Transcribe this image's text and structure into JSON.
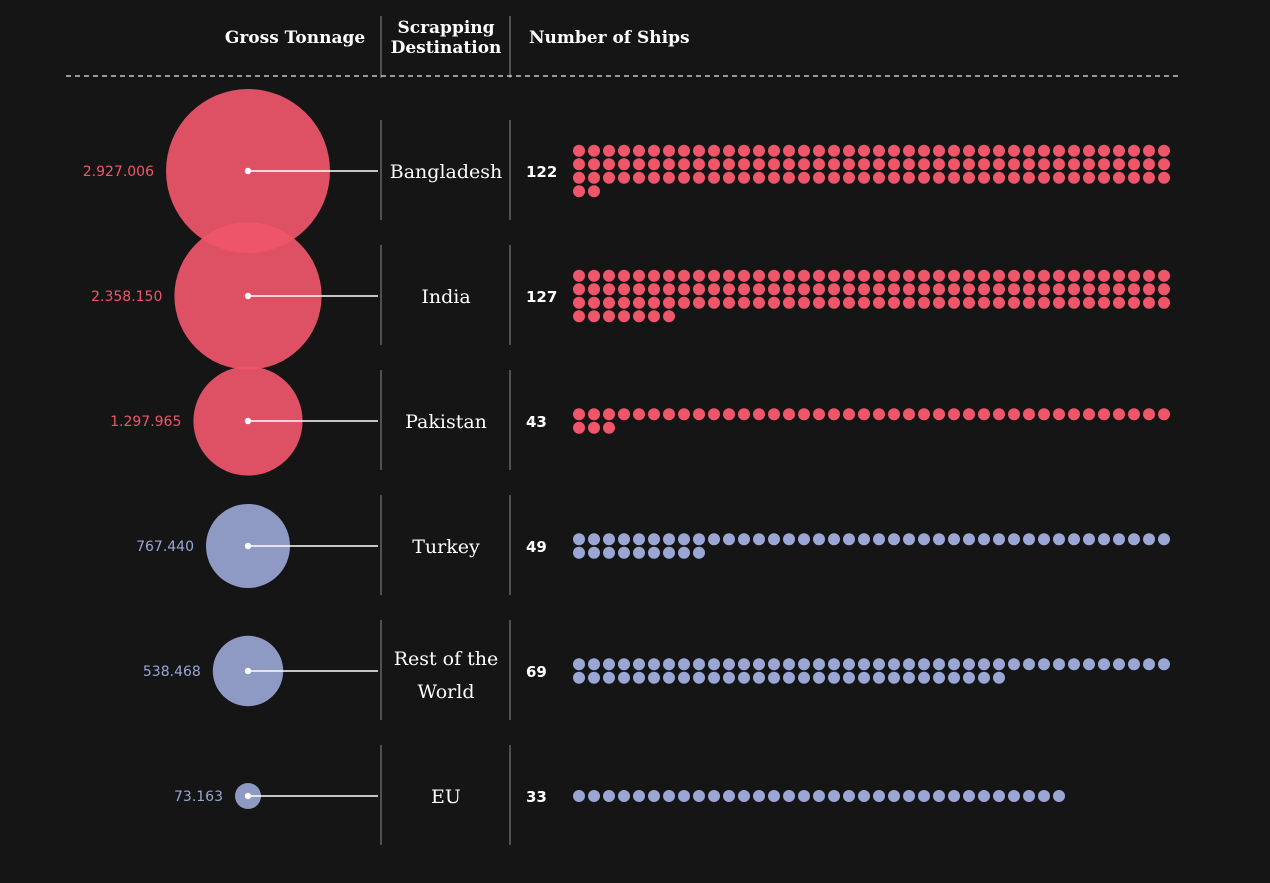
{
  "colors": {
    "background": "#151516",
    "top3": "#f0566a",
    "others": "#9aa6d4",
    "line": "#ffffff",
    "divider": "#8a8a8a"
  },
  "chart_data": {
    "type": "bubble-and-dot-matrix",
    "headers": {
      "gross_tonnage": "Gross Tonnage",
      "destination_line1": "Scrapping",
      "destination_line2": "Destination",
      "ships": "Number of Ships"
    },
    "rows": [
      {
        "destination": [
          "Bangladesh"
        ],
        "gross_tonnage": 2927006,
        "gross_tonnage_label": "2.927.006",
        "ships": 122,
        "color": "#f0566a"
      },
      {
        "destination": [
          "India"
        ],
        "gross_tonnage": 2358150,
        "gross_tonnage_label": "2.358.150",
        "ships": 127,
        "color": "#f0566a"
      },
      {
        "destination": [
          "Pakistan"
        ],
        "gross_tonnage": 1297965,
        "gross_tonnage_label": "1.297.965",
        "ships": 43,
        "color": "#f0566a"
      },
      {
        "destination": [
          "Turkey"
        ],
        "gross_tonnage": 767440,
        "gross_tonnage_label": "767.440",
        "ships": 49,
        "color": "#9aa6d4"
      },
      {
        "destination": [
          "Rest of the",
          "World"
        ],
        "gross_tonnage": 538468,
        "gross_tonnage_label": "538.468",
        "ships": 69,
        "color": "#9aa6d4"
      },
      {
        "destination": [
          "EU"
        ],
        "gross_tonnage": 73163,
        "gross_tonnage_label": "73.163",
        "ships": 33,
        "color": "#9aa6d4"
      }
    ]
  }
}
